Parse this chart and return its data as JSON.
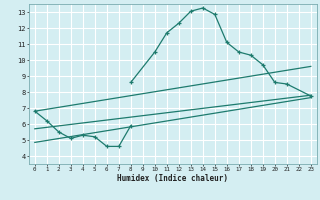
{
  "xlabel": "Humidex (Indice chaleur)",
  "background_color": "#d4eef2",
  "grid_color": "#ffffff",
  "line_color": "#1e7b6e",
  "xlim": [
    -0.5,
    23.5
  ],
  "ylim": [
    3.5,
    13.5
  ],
  "xticks": [
    0,
    1,
    2,
    3,
    4,
    5,
    6,
    7,
    8,
    9,
    10,
    11,
    12,
    13,
    14,
    15,
    16,
    17,
    18,
    19,
    20,
    21,
    22,
    23
  ],
  "yticks": [
    4,
    5,
    6,
    7,
    8,
    9,
    10,
    11,
    12,
    13
  ],
  "curve1_x": [
    0,
    1,
    2,
    3,
    4,
    5,
    6,
    7,
    8
  ],
  "curve1_y": [
    6.8,
    6.2,
    5.5,
    5.1,
    5.3,
    5.2,
    4.6,
    4.6,
    5.9
  ],
  "curve2_x": [
    8,
    10,
    11,
    12,
    13,
    14,
    15,
    16,
    17,
    18,
    19,
    20,
    21,
    23
  ],
  "curve2_y": [
    8.6,
    10.5,
    11.7,
    12.3,
    13.05,
    13.25,
    12.85,
    11.1,
    10.5,
    10.3,
    9.7,
    8.6,
    8.5,
    7.75
  ],
  "line1_x": [
    0,
    23
  ],
  "line1_y": [
    6.8,
    9.6
  ],
  "line2_x": [
    0,
    23
  ],
  "line2_y": [
    5.7,
    7.8
  ],
  "line3_x": [
    0,
    23
  ],
  "line3_y": [
    4.85,
    7.65
  ]
}
